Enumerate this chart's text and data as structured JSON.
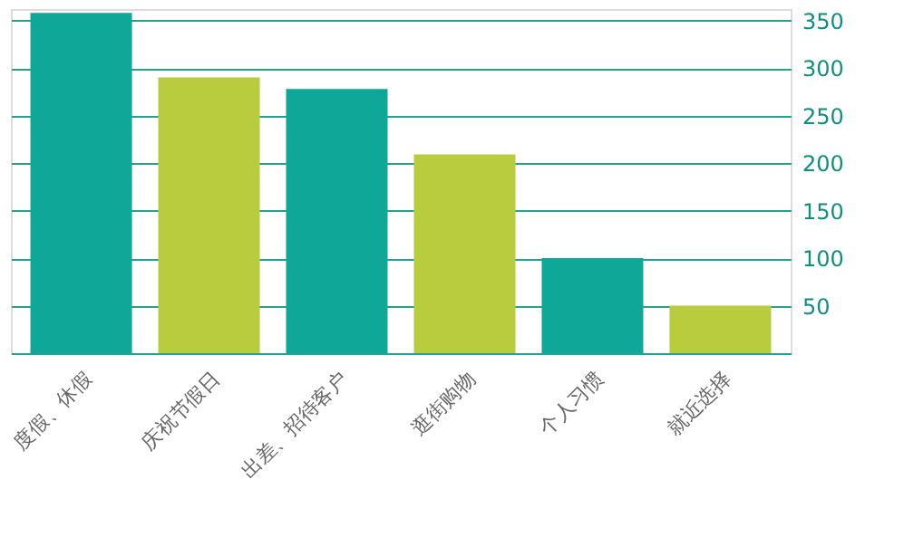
{
  "chart_data": {
    "type": "bar",
    "categories": [
      "度假、休假",
      "庆祝节假日",
      "出差、招待客户",
      "逛街购物",
      "个人习惯",
      "就近选择"
    ],
    "values": [
      358,
      290,
      278,
      209,
      100,
      50
    ],
    "colors": [
      "#0fa898",
      "#b8cc3e",
      "#0fa898",
      "#b8cc3e",
      "#0fa898",
      "#b8cc3e"
    ],
    "ylim": [
      0,
      362
    ],
    "yticks": [
      {
        "value": 0,
        "label": null
      },
      50,
      100,
      150,
      200,
      250,
      300,
      350
    ],
    "grid": "y"
  }
}
